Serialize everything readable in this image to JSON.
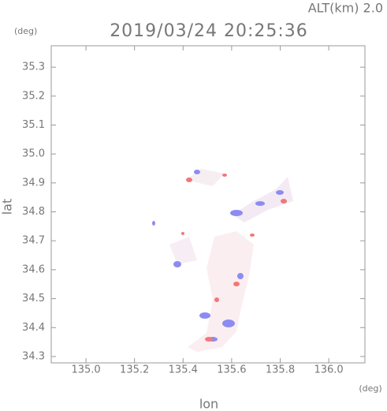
{
  "chart_data": {
    "type": "map",
    "title": "2019/03/24 20:25:36",
    "altitude_label": "ALT(km) 2.0",
    "y_unit": "(deg)",
    "x_unit": "(deg)",
    "xlabel": "lon",
    "ylabel": "lat",
    "xlim": [
      134.857,
      136.149
    ],
    "ylim": [
      34.278,
      35.374
    ],
    "xticks": [
      {
        "value": 135.0,
        "label": "135.0"
      },
      135.2,
      135.4,
      135.6,
      135.8,
      {
        "value": 136.0,
        "label": "136.0"
      }
    ],
    "yticks": [
      35.3,
      35.2,
      35.1,
      {
        "value": 35.0,
        "label": "35.0"
      },
      34.9,
      34.8,
      34.7,
      34.6,
      34.5,
      34.4,
      34.3
    ]
  }
}
